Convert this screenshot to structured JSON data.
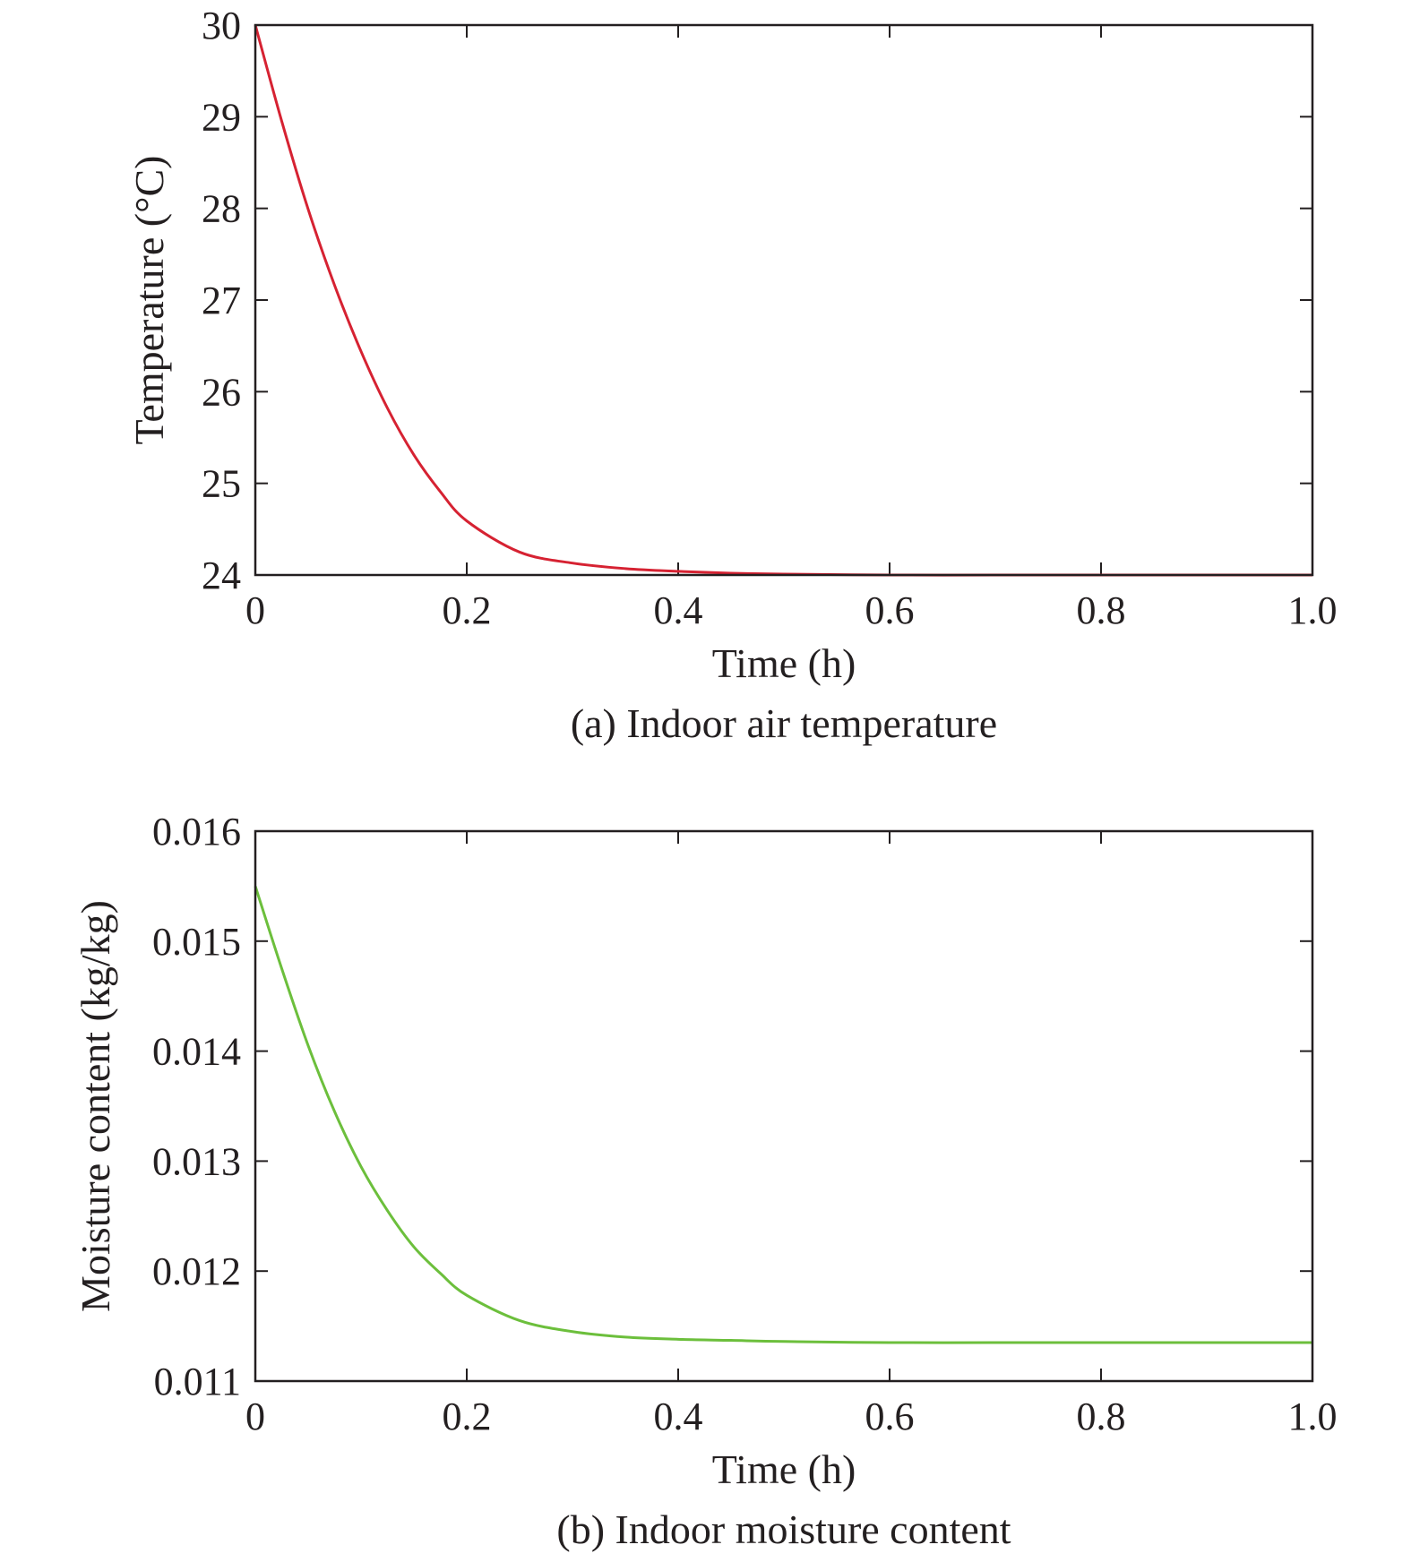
{
  "chart_data": [
    {
      "type": "line",
      "caption": "(a) Indoor air temperature",
      "xlabel": "Time (h)",
      "ylabel": "Temperature (°C)",
      "xlim": [
        0,
        1.0
      ],
      "ylim": [
        24,
        30
      ],
      "x_ticks": [
        "0",
        "0.2",
        "0.4",
        "0.6",
        "0.8",
        "1.0"
      ],
      "y_ticks": [
        "24",
        "25",
        "26",
        "27",
        "28",
        "29",
        "30"
      ],
      "grid": false,
      "series": [
        {
          "color": "#d62232",
          "x": [
            0,
            0.025,
            0.05,
            0.075,
            0.1,
            0.125,
            0.15,
            0.175,
            0.2,
            0.25,
            0.3,
            0.35,
            0.4,
            0.45,
            0.5,
            0.6,
            0.7,
            0.8,
            0.9,
            1.0
          ],
          "y": [
            30.0,
            28.95,
            27.99,
            27.16,
            26.44,
            25.82,
            25.31,
            24.91,
            24.59,
            24.25,
            24.13,
            24.07,
            24.04,
            24.02,
            24.01,
            24.0,
            24.0,
            24.0,
            24.0,
            24.0
          ]
        }
      ]
    },
    {
      "type": "line",
      "caption": "(b) Indoor moisture content",
      "xlabel": "Time (h)",
      "ylabel": "Moisture content (kg/kg)",
      "xlim": [
        0,
        1.0
      ],
      "ylim": [
        0.011,
        0.016
      ],
      "x_ticks": [
        "0",
        "0.2",
        "0.4",
        "0.6",
        "0.8",
        "1.0"
      ],
      "y_ticks": [
        "0.011",
        "0.012",
        "0.013",
        "0.014",
        "0.015",
        "0.016"
      ],
      "grid": false,
      "series": [
        {
          "color": "#6cbf3c",
          "x": [
            0,
            0.025,
            0.05,
            0.075,
            0.1,
            0.125,
            0.15,
            0.175,
            0.2,
            0.25,
            0.3,
            0.35,
            0.4,
            0.45,
            0.5,
            0.6,
            0.7,
            0.8,
            0.9,
            1.0
          ],
          "y": [
            0.0155,
            0.01475,
            0.01405,
            0.01345,
            0.01295,
            0.01255,
            0.01222,
            0.01198,
            0.01178,
            0.01155,
            0.01145,
            0.0114,
            0.01138,
            0.01137,
            0.01136,
            0.01135,
            0.01135,
            0.01135,
            0.01135,
            0.01135
          ]
        }
      ]
    }
  ]
}
